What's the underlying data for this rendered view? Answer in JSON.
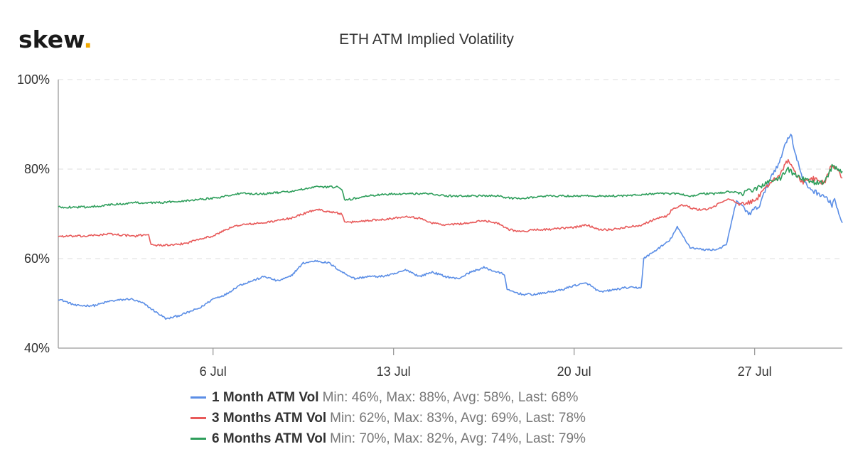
{
  "logo": {
    "text": "skew",
    "dot": "."
  },
  "chart_data": {
    "type": "line",
    "title": "ETH ATM Implied Volatility",
    "xlabel": "",
    "ylabel": "",
    "x_ticks": [
      {
        "label": "6 Jul",
        "day": 6
      },
      {
        "label": "13 Jul",
        "day": 13
      },
      {
        "label": "20 Jul",
        "day": 20
      },
      {
        "label": "27 Jul",
        "day": 27
      }
    ],
    "x_range_days": [
      0.0,
      30.4
    ],
    "y_ticks": [
      {
        "label": "40%",
        "value": 40
      },
      {
        "label": "60%",
        "value": 60
      },
      {
        "label": "80%",
        "value": 80
      },
      {
        "label": "100%",
        "value": 100
      }
    ],
    "ylim": [
      40,
      100
    ],
    "grid": "horizontal-dashed",
    "legend_position": "bottom-center",
    "series": [
      {
        "name": "1 Month ATM Vol",
        "stats": "Min: 46%, Max: 88%, Avg: 58%, Last: 68%",
        "color": "#5b8ee6",
        "points": [
          [
            0.0,
            51
          ],
          [
            0.7,
            49.5
          ],
          [
            1.4,
            49.5
          ],
          [
            2.0,
            50.5
          ],
          [
            2.8,
            51
          ],
          [
            3.3,
            50
          ],
          [
            3.8,
            48
          ],
          [
            4.2,
            46.5
          ],
          [
            4.8,
            47.5
          ],
          [
            5.5,
            49
          ],
          [
            6.0,
            51
          ],
          [
            6.5,
            52
          ],
          [
            7.0,
            54
          ],
          [
            7.5,
            55
          ],
          [
            8.0,
            56
          ],
          [
            8.5,
            55
          ],
          [
            9.0,
            56
          ],
          [
            9.5,
            59
          ],
          [
            10.0,
            59.5
          ],
          [
            10.5,
            59
          ],
          [
            11.0,
            57
          ],
          [
            11.5,
            55.5
          ],
          [
            12.0,
            56
          ],
          [
            12.5,
            56
          ],
          [
            13.0,
            56.5
          ],
          [
            13.5,
            57.5
          ],
          [
            14.0,
            56
          ],
          [
            14.5,
            57
          ],
          [
            15.0,
            56
          ],
          [
            15.5,
            55.5
          ],
          [
            16.0,
            57
          ],
          [
            16.5,
            58
          ],
          [
            17.0,
            57
          ],
          [
            17.3,
            56.5
          ],
          [
            17.4,
            53
          ],
          [
            18.0,
            52
          ],
          [
            18.5,
            52
          ],
          [
            19.0,
            52.5
          ],
          [
            19.5,
            53
          ],
          [
            20.0,
            54
          ],
          [
            20.5,
            54.5
          ],
          [
            21.0,
            52.5
          ],
          [
            21.5,
            53
          ],
          [
            22.0,
            53.5
          ],
          [
            22.6,
            53.5
          ],
          [
            22.7,
            60
          ],
          [
            23.2,
            62
          ],
          [
            23.7,
            64
          ],
          [
            24.0,
            67
          ],
          [
            24.5,
            62.5
          ],
          [
            25.0,
            62
          ],
          [
            25.5,
            62
          ],
          [
            25.9,
            63
          ],
          [
            26.3,
            73
          ],
          [
            26.8,
            70
          ],
          [
            27.2,
            72
          ],
          [
            27.6,
            78
          ],
          [
            28.0,
            82
          ],
          [
            28.2,
            86
          ],
          [
            28.4,
            88
          ],
          [
            28.6,
            83
          ],
          [
            28.9,
            77
          ],
          [
            29.3,
            75
          ],
          [
            29.7,
            74
          ],
          [
            30.0,
            72
          ],
          [
            30.1,
            73.5
          ],
          [
            30.3,
            69
          ],
          [
            30.4,
            68
          ]
        ]
      },
      {
        "name": "3 Months ATM Vol",
        "stats": "Min: 62%, Max: 83%, Avg: 69%, Last: 78%",
        "color": "#e85a5a",
        "points": [
          [
            0.0,
            65
          ],
          [
            1.0,
            65
          ],
          [
            2.0,
            65.5
          ],
          [
            3.0,
            65
          ],
          [
            3.5,
            65.5
          ],
          [
            3.6,
            63
          ],
          [
            4.5,
            63
          ],
          [
            5.0,
            63.5
          ],
          [
            5.5,
            64.5
          ],
          [
            6.0,
            65
          ],
          [
            6.5,
            66.5
          ],
          [
            7.0,
            67.5
          ],
          [
            8.0,
            68
          ],
          [
            9.0,
            69
          ],
          [
            9.5,
            70
          ],
          [
            10.0,
            71
          ],
          [
            10.5,
            70.5
          ],
          [
            11.0,
            70
          ],
          [
            11.1,
            68
          ],
          [
            12.0,
            68.5
          ],
          [
            13.0,
            69
          ],
          [
            13.5,
            69.5
          ],
          [
            14.0,
            69
          ],
          [
            14.5,
            68
          ],
          [
            15.0,
            67.5
          ],
          [
            16.0,
            68
          ],
          [
            16.5,
            68.5
          ],
          [
            17.0,
            68
          ],
          [
            17.5,
            66.5
          ],
          [
            18.0,
            66
          ],
          [
            18.5,
            66.5
          ],
          [
            19.0,
            66.5
          ],
          [
            20.0,
            67
          ],
          [
            20.5,
            67.5
          ],
          [
            21.0,
            66.5
          ],
          [
            21.5,
            66.5
          ],
          [
            22.0,
            67
          ],
          [
            22.6,
            67.5
          ],
          [
            22.8,
            68
          ],
          [
            23.2,
            69
          ],
          [
            23.6,
            69.5
          ],
          [
            23.8,
            71
          ],
          [
            24.2,
            72
          ],
          [
            24.7,
            71
          ],
          [
            25.2,
            71
          ],
          [
            25.7,
            72.5
          ],
          [
            26.0,
            73.5
          ],
          [
            26.4,
            72
          ],
          [
            26.8,
            72.5
          ],
          [
            27.2,
            74
          ],
          [
            27.6,
            77
          ],
          [
            28.0,
            79
          ],
          [
            28.3,
            82
          ],
          [
            28.5,
            80
          ],
          [
            28.8,
            77
          ],
          [
            29.2,
            78
          ],
          [
            29.7,
            77
          ],
          [
            30.0,
            81
          ],
          [
            30.3,
            79
          ],
          [
            30.4,
            78
          ]
        ]
      },
      {
        "name": "6 Months ATM Vol",
        "stats": "Min: 70%, Max: 82%, Avg: 74%, Last: 79%",
        "color": "#2e9e5b",
        "points": [
          [
            0.0,
            71.5
          ],
          [
            1.0,
            71.5
          ],
          [
            2.0,
            72
          ],
          [
            3.0,
            72.5
          ],
          [
            4.0,
            72.5
          ],
          [
            5.0,
            73
          ],
          [
            6.0,
            73.5
          ],
          [
            7.0,
            74.5
          ],
          [
            8.0,
            74.5
          ],
          [
            9.0,
            75
          ],
          [
            9.5,
            75.5
          ],
          [
            10.0,
            76
          ],
          [
            10.8,
            76
          ],
          [
            11.0,
            75.5
          ],
          [
            11.1,
            73
          ],
          [
            12.0,
            74
          ],
          [
            13.0,
            74.5
          ],
          [
            14.0,
            74.5
          ],
          [
            14.5,
            74.5
          ],
          [
            15.0,
            74
          ],
          [
            16.0,
            74
          ],
          [
            17.0,
            74
          ],
          [
            17.5,
            73.5
          ],
          [
            18.0,
            73.5
          ],
          [
            19.0,
            74
          ],
          [
            20.0,
            74
          ],
          [
            21.0,
            74
          ],
          [
            22.0,
            74
          ],
          [
            23.0,
            74.5
          ],
          [
            24.0,
            74.5
          ],
          [
            24.5,
            74
          ],
          [
            25.0,
            74.5
          ],
          [
            25.5,
            74.5
          ],
          [
            26.0,
            75
          ],
          [
            26.5,
            74.5
          ],
          [
            27.0,
            75.5
          ],
          [
            27.5,
            77
          ],
          [
            28.0,
            78
          ],
          [
            28.3,
            80
          ],
          [
            28.5,
            79
          ],
          [
            28.8,
            78
          ],
          [
            29.2,
            77
          ],
          [
            29.7,
            77
          ],
          [
            30.0,
            80.5
          ],
          [
            30.2,
            80
          ],
          [
            30.4,
            79.5
          ]
        ]
      }
    ]
  }
}
